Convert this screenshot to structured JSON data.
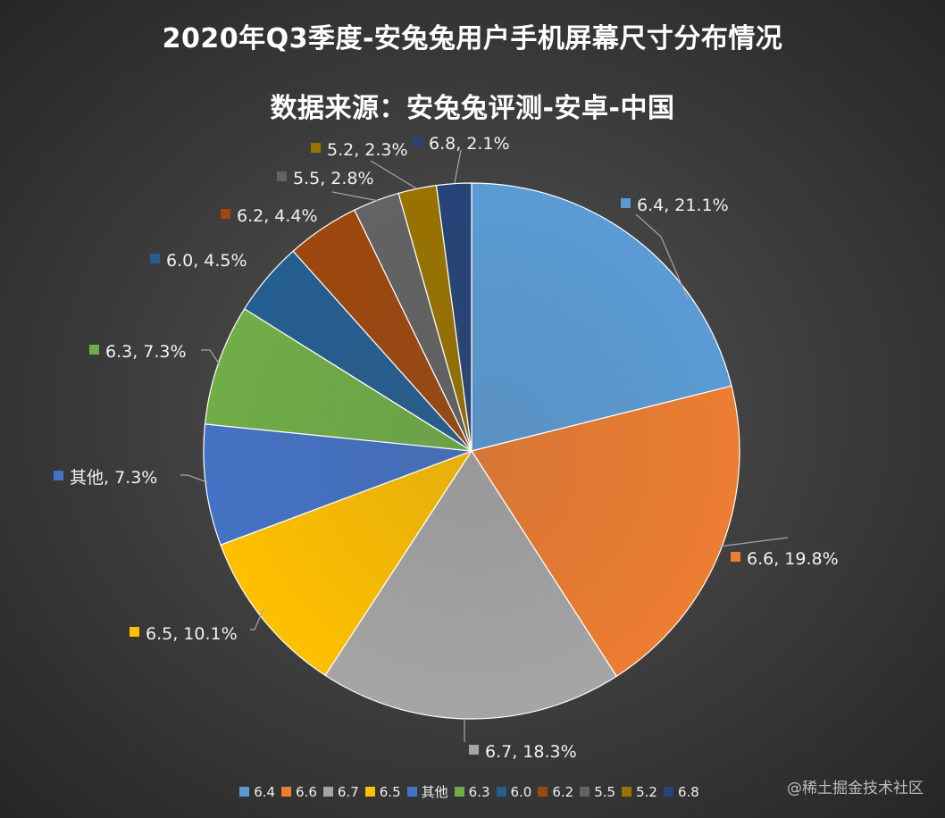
{
  "chart_data": {
    "type": "pie",
    "title": "2020年Q3季度-安兔兔用户手机屏幕尺寸分布情况",
    "subtitle": "数据来源：安兔兔评测-安卓-中国",
    "slices": [
      {
        "name": "6.4",
        "value": 21.1,
        "label": "6.4, 21.1%",
        "color": "#5b9bd5"
      },
      {
        "name": "6.6",
        "value": 19.8,
        "label": "6.6, 19.8%",
        "color": "#ed7d31"
      },
      {
        "name": "6.7",
        "value": 18.3,
        "label": "6.7, 18.3%",
        "color": "#a5a5a5"
      },
      {
        "name": "6.5",
        "value": 10.1,
        "label": "6.5, 10.1%",
        "color": "#ffc000"
      },
      {
        "name": "其他",
        "value": 7.3,
        "label": "其他, 7.3%",
        "color": "#4472c4"
      },
      {
        "name": "6.3",
        "value": 7.3,
        "label": "6.3, 7.3%",
        "color": "#70ad47"
      },
      {
        "name": "6.0",
        "value": 4.5,
        "label": "6.0, 4.5%",
        "color": "#255e91"
      },
      {
        "name": "6.2",
        "value": 4.4,
        "label": "6.2, 4.4%",
        "color": "#9e480e"
      },
      {
        "name": "5.5",
        "value": 2.8,
        "label": "5.5, 2.8%",
        "color": "#636363"
      },
      {
        "name": "5.2",
        "value": 2.3,
        "label": "5.2, 2.3%",
        "color": "#997300"
      },
      {
        "name": "6.8",
        "value": 2.1,
        "label": "6.8, 2.1%",
        "color": "#264478"
      }
    ],
    "legend_position": "bottom"
  },
  "watermark": "@稀土掘金技术社区"
}
